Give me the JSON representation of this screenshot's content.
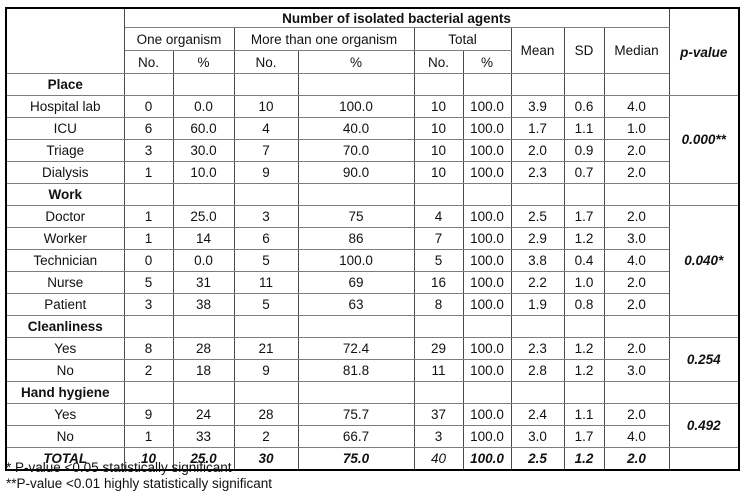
{
  "table": {
    "title": "Number of isolated bacterial agents",
    "col_groups": [
      "One organism",
      "More than one organism",
      "Total"
    ],
    "sub_headers": [
      "No.",
      "%",
      "No.",
      "%",
      "No.",
      "%"
    ],
    "stat_headers": [
      "Mean",
      "SD",
      "Median"
    ],
    "pvalue_header": "p-value",
    "sections": [
      {
        "name": "Place",
        "pvalue": "0.000**",
        "rows": [
          {
            "label": "Hospital lab",
            "cells": [
              "0",
              "0.0",
              "10",
              "100.0",
              "10",
              "100.0",
              "3.9",
              "0.6",
              "4.0"
            ]
          },
          {
            "label": "ICU",
            "cells": [
              "6",
              "60.0",
              "4",
              "40.0",
              "10",
              "100.0",
              "1.7",
              "1.1",
              "1.0"
            ]
          },
          {
            "label": "Triage",
            "cells": [
              "3",
              "30.0",
              "7",
              "70.0",
              "10",
              "100.0",
              "2.0",
              "0.9",
              "2.0"
            ]
          },
          {
            "label": "Dialysis",
            "cells": [
              "1",
              "10.0",
              "9",
              "90.0",
              "10",
              "100.0",
              "2.3",
              "0.7",
              "2.0"
            ]
          }
        ]
      },
      {
        "name": "Work",
        "pvalue": "0.040*",
        "rows": [
          {
            "label": "Doctor",
            "cells": [
              "1",
              "25.0",
              "3",
              "75",
              "4",
              "100.0",
              "2.5",
              "1.7",
              "2.0"
            ]
          },
          {
            "label": "Worker",
            "cells": [
              "1",
              "14",
              "6",
              "86",
              "7",
              "100.0",
              "2.9",
              "1.2",
              "3.0"
            ]
          },
          {
            "label": "Technician",
            "cells": [
              "0",
              "0.0",
              "5",
              "100.0",
              "5",
              "100.0",
              "3.8",
              "0.4",
              "4.0"
            ]
          },
          {
            "label": "Nurse",
            "cells": [
              "5",
              "31",
              "11",
              "69",
              "16",
              "100.0",
              "2.2",
              "1.0",
              "2.0"
            ]
          },
          {
            "label": "Patient",
            "cells": [
              "3",
              "38",
              "5",
              "63",
              "8",
              "100.0",
              "1.9",
              "0.8",
              "2.0"
            ]
          }
        ]
      },
      {
        "name": "Cleanliness",
        "pvalue": "0.254",
        "rows": [
          {
            "label": "Yes",
            "cells": [
              "8",
              "28",
              "21",
              "72.4",
              "29",
              "100.0",
              "2.3",
              "1.2",
              "2.0"
            ]
          },
          {
            "label": "No",
            "cells": [
              "2",
              "18",
              "9",
              "81.8",
              "11",
              "100.0",
              "2.8",
              "1.2",
              "3.0"
            ]
          }
        ]
      },
      {
        "name": "Hand hygiene",
        "pvalue": "0.492",
        "rows": [
          {
            "label": "Yes",
            "cells": [
              "9",
              "24",
              "28",
              "75.7",
              "37",
              "100.0",
              "2.4",
              "1.1",
              "2.0"
            ]
          },
          {
            "label": "No",
            "cells": [
              "1",
              "33",
              "2",
              "66.7",
              "3",
              "100.0",
              "3.0",
              "1.7",
              "4.0"
            ]
          }
        ]
      }
    ],
    "total_row": {
      "label": "TOTAL",
      "cells": [
        "10",
        "25.0",
        "30",
        "75.0",
        "40",
        "100.0",
        "2.5",
        "1.2",
        "2.0"
      ],
      "plain_cell_index": 4
    },
    "footnotes": [
      "* P-value <0.05 statistically significant",
      "**P-value <0.01 highly statistically significant"
    ]
  }
}
